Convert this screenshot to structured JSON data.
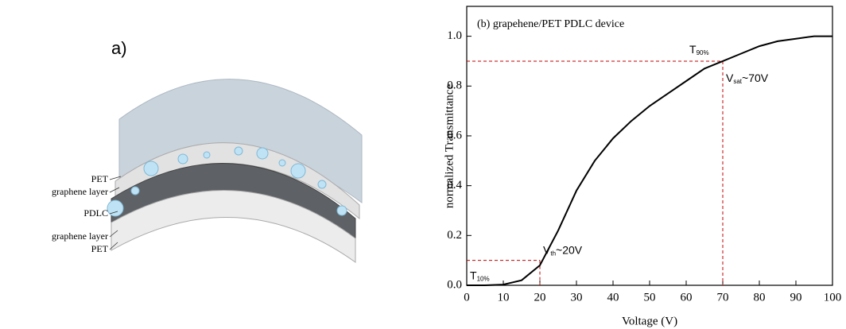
{
  "diagram": {
    "label": "a)",
    "layers": [
      "PET",
      "graphene layer",
      "PDLC",
      "graphene layer",
      "PET"
    ]
  },
  "chart_data": {
    "type": "line",
    "title": "(b) grapehene/PET  PDLC device",
    "x_label": "Voltage (V)",
    "y_label": "normalized Transmittance",
    "x": [
      0,
      5,
      10,
      15,
      20,
      25,
      30,
      35,
      40,
      45,
      50,
      55,
      60,
      65,
      70,
      75,
      80,
      85,
      90,
      95,
      100
    ],
    "values": [
      0,
      0,
      0.003,
      0.02,
      0.08,
      0.22,
      0.38,
      0.5,
      0.59,
      0.66,
      0.72,
      0.77,
      0.82,
      0.87,
      0.9,
      0.93,
      0.96,
      0.98,
      0.99,
      1.0,
      1.0
    ],
    "color": "#000000",
    "xlim": [
      0,
      100
    ],
    "ylim": [
      0,
      1.12
    ],
    "xticks": [
      0,
      10,
      20,
      30,
      40,
      50,
      60,
      70,
      80,
      90,
      100
    ],
    "yticks": [
      {
        "value": 0,
        "label": "0.0"
      },
      0.2,
      0.4,
      0.6,
      0.8,
      {
        "value": 1,
        "label": "1.0"
      }
    ],
    "reference_lines": [
      {
        "x": 70,
        "y": 0.9,
        "color": "#c00000"
      },
      {
        "x": 20,
        "y": 0.1,
        "color": "#c00000"
      }
    ],
    "annotations": [
      {
        "symbol": "T",
        "subscript": "90%"
      },
      {
        "symbol": "V",
        "subscript": "sat",
        "text": "~70V"
      },
      {
        "symbol": "T",
        "subscript": "10%"
      },
      {
        "symbol": "V",
        "subscript": "th",
        "text": "~20V"
      }
    ]
  }
}
